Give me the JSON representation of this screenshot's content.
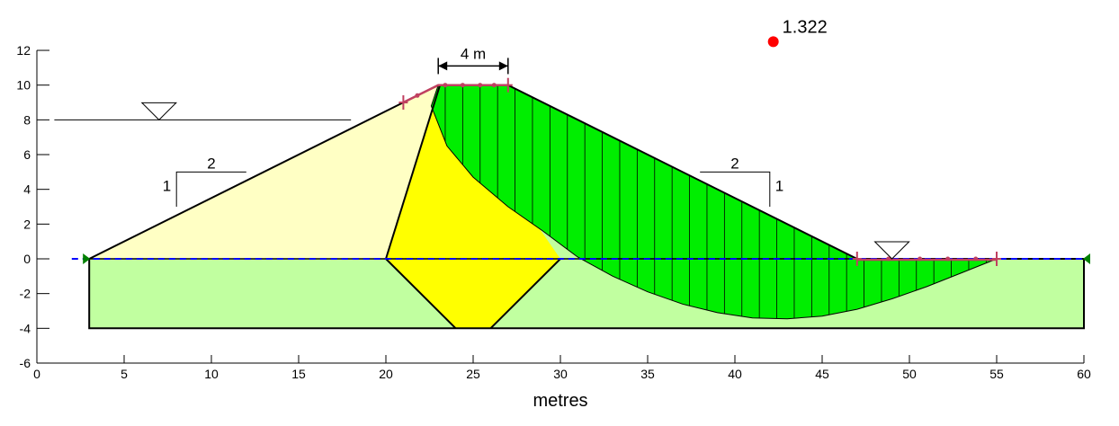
{
  "chart_data": {
    "type": "diagram",
    "xlabel": "metres",
    "xlim": [
      0,
      60
    ],
    "ylim": [
      -6,
      12
    ],
    "x_ticks": [
      0,
      5,
      10,
      15,
      20,
      25,
      30,
      35,
      40,
      45,
      50,
      55,
      60
    ],
    "y_ticks": [
      -6,
      -4,
      -2,
      0,
      2,
      4,
      6,
      8,
      10,
      12
    ],
    "factor_of_safety": {
      "label": "1.322",
      "x": 42.2,
      "y": 12.5
    },
    "dimension": {
      "label": "4 m",
      "x1": 23,
      "x2": 27,
      "y": 11.1
    },
    "left_slope": {
      "run_label": "2",
      "rise_label": "1"
    },
    "right_slope": {
      "run_label": "2",
      "rise_label": "1"
    },
    "regions": {
      "foundation": [
        [
          3,
          0
        ],
        [
          60,
          0
        ],
        [
          60,
          -4
        ],
        [
          3,
          -4
        ]
      ],
      "upstream_shell": [
        [
          3,
          0
        ],
        [
          21,
          9
        ],
        [
          23,
          10
        ],
        [
          23.1,
          10
        ],
        [
          20,
          0
        ]
      ],
      "core": [
        [
          20,
          0
        ],
        [
          23.1,
          10
        ],
        [
          25,
          10
        ],
        [
          30,
          0
        ],
        [
          26,
          -4
        ],
        [
          24,
          -4
        ]
      ],
      "downstream_shell": [
        [
          23.1,
          10
        ],
        [
          27,
          10
        ],
        [
          47,
          0
        ],
        [
          30,
          0
        ]
      ]
    },
    "slip_surface": [
      [
        22.6,
        8.8
      ],
      [
        23.5,
        6.5
      ],
      [
        25,
        4.7
      ],
      [
        27,
        3.0
      ],
      [
        29,
        1.6
      ],
      [
        31,
        0.1
      ],
      [
        33,
        -1.0
      ],
      [
        35,
        -1.9
      ],
      [
        37,
        -2.6
      ],
      [
        39,
        -3.1
      ],
      [
        41,
        -3.4
      ],
      [
        43,
        -3.45
      ],
      [
        45,
        -3.3
      ],
      [
        47,
        -2.9
      ],
      [
        49,
        -2.3
      ],
      [
        51,
        -1.6
      ],
      [
        53,
        -0.8
      ],
      [
        55,
        0
      ]
    ],
    "slice_x_start": 23.4,
    "slice_x_end": 55,
    "slice_width": 1,
    "water_left": {
      "x1": 1,
      "x2": 18,
      "y": 8,
      "marker_x": 7
    },
    "water_right": {
      "x1": 47,
      "x2": 55,
      "y": 0,
      "marker_x": 49
    },
    "phreatic_line": {
      "x1": 2,
      "x2": 60,
      "y": 0
    },
    "colors": {
      "foundation": "#c1ffa0",
      "upstream_shell": "#ffffc4",
      "core": "#ffff00",
      "slip_mass": "#00ee00",
      "slip_point": "#ff0000",
      "phreatic": "#0000ff",
      "entry_exit": "#c04060",
      "support": "#008000"
    }
  }
}
